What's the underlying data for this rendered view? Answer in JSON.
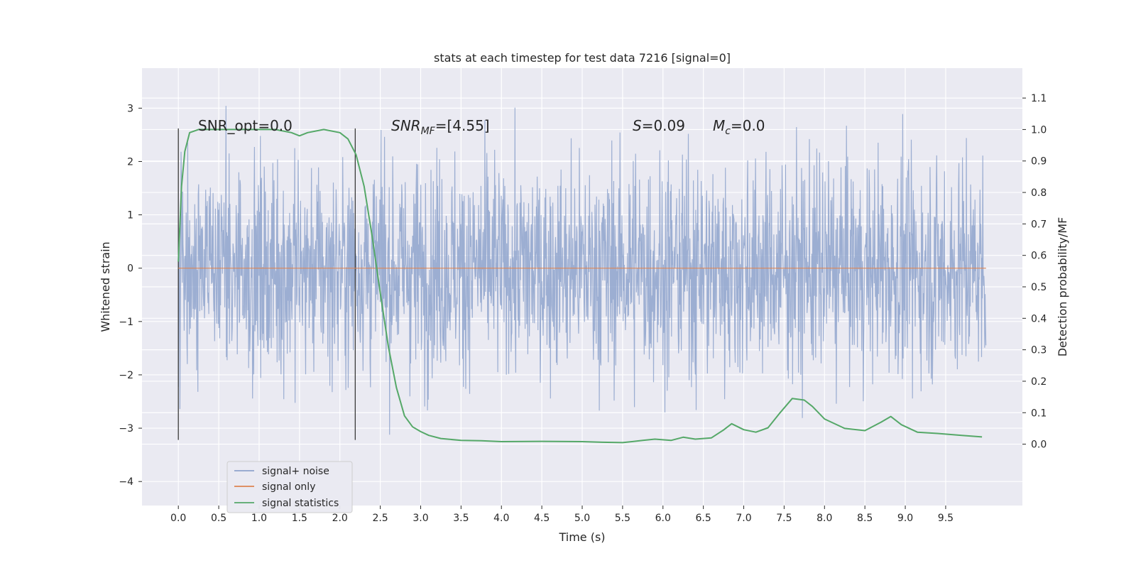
{
  "chart_data": {
    "type": "line",
    "title": "stats at each timestep for test data 7216 [signal=0]",
    "xlabel": "Time (s)",
    "ylabel": "Whitened strain",
    "y2label": "Detection probability/MF",
    "xlim": [
      -0.45,
      10.45
    ],
    "ylim": [
      -4.45,
      3.75
    ],
    "y2lim": [
      -0.195,
      1.195
    ],
    "x_ticks": [
      "0.0",
      "0.5",
      "1.0",
      "1.5",
      "2.0",
      "2.5",
      "3.0",
      "3.5",
      "4.0",
      "4.5",
      "5.0",
      "5.5",
      "6.0",
      "6.5",
      "7.0",
      "7.5",
      "8.0",
      "8.5",
      "9.0",
      "9.5"
    ],
    "y_ticks": [
      "3",
      "2",
      "1",
      "0",
      "−1",
      "−2",
      "−3",
      "−4"
    ],
    "y2_ticks": [
      "1.1",
      "1.0",
      "0.9",
      "0.8",
      "0.7",
      "0.6",
      "0.5",
      "0.4",
      "0.3",
      "0.2",
      "0.1",
      "0.0"
    ],
    "grid": true,
    "legend_position": "lower-left",
    "annotations": {
      "snr_opt": "SNR_opt=0.0",
      "snr_mf_label": "SNR",
      "snr_mf_sub": "MF",
      "snr_mf_value": "=[4.55]",
      "s_label": "S",
      "s_value": "=0.09",
      "mc_label": "M",
      "mc_sub": "c",
      "mc_value": "=0.0"
    },
    "vertical_markers": [
      {
        "x": 0.0,
        "ymin": -3.22,
        "ymax": 2.62
      },
      {
        "x": 2.19,
        "ymin": -3.22,
        "ymax": 2.62
      }
    ],
    "series": [
      {
        "name": "signal+ noise",
        "color": "#8ea3cc",
        "style": "noise",
        "x_range": [
          0.0,
          10.0
        ],
        "y_abs_max": 3.4,
        "envelope": [
          [
            0.0,
            1.5
          ],
          [
            2.2,
            1.5
          ],
          [
            2.5,
            1.45
          ],
          [
            10.0,
            1.5
          ]
        ]
      },
      {
        "name": "signal only",
        "color": "#dd8452",
        "values_x": [
          0.0,
          10.0
        ],
        "values_y": [
          0.0,
          0.0
        ]
      },
      {
        "name": "signal statistics",
        "color": "#55a868",
        "axis": "right",
        "x": [
          0.0,
          0.04,
          0.08,
          0.14,
          0.25,
          0.5,
          0.8,
          1.0,
          1.2,
          1.4,
          1.5,
          1.6,
          1.8,
          2.0,
          2.1,
          2.2,
          2.3,
          2.4,
          2.5,
          2.6,
          2.7,
          2.8,
          2.9,
          3.0,
          3.1,
          3.25,
          3.5,
          3.75,
          4.0,
          4.5,
          5.0,
          5.25,
          5.5,
          5.75,
          5.9,
          6.1,
          6.25,
          6.4,
          6.6,
          6.75,
          6.85,
          7.0,
          7.15,
          7.3,
          7.45,
          7.6,
          7.75,
          7.85,
          8.0,
          8.25,
          8.5,
          8.7,
          8.82,
          8.95,
          9.15,
          9.4,
          9.7,
          9.95
        ],
        "y": [
          0.58,
          0.82,
          0.93,
          0.99,
          1.0,
          1.0,
          1.0,
          1.0,
          1.0,
          0.99,
          0.98,
          0.99,
          1.0,
          0.99,
          0.97,
          0.92,
          0.82,
          0.66,
          0.48,
          0.31,
          0.18,
          0.09,
          0.055,
          0.04,
          0.028,
          0.018,
          0.012,
          0.011,
          0.008,
          0.009,
          0.008,
          0.006,
          0.005,
          0.012,
          0.016,
          0.012,
          0.022,
          0.016,
          0.02,
          0.045,
          0.065,
          0.046,
          0.038,
          0.052,
          0.1,
          0.145,
          0.14,
          0.12,
          0.08,
          0.05,
          0.043,
          0.07,
          0.088,
          0.062,
          0.038,
          0.034,
          0.028,
          0.023
        ]
      }
    ]
  }
}
